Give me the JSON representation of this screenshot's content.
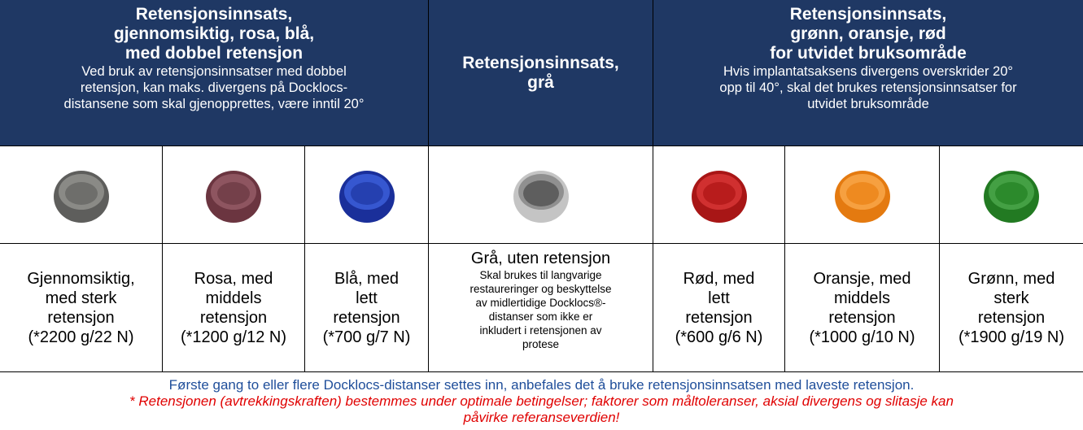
{
  "header": [
    {
      "title": [
        "Retensjonsinnsats,",
        "gjennomsiktig, rosa, blå,",
        "med dobbel retensjon"
      ],
      "subtitle": [
        "Ved bruk av retensjonsinnsatser med dobbel",
        "retensjon, kan maks. divergens på Docklocs-",
        "distansene som skal gjenopprettes, være inntil 20°"
      ]
    },
    {
      "title": [
        "Retensjonsinnsats,",
        "grå"
      ]
    },
    {
      "title": [
        "Retensjonsinnsats,",
        "grønn, oransje, rød",
        "for utvidet bruksområde"
      ],
      "subtitle": [
        "Hvis implantatsaksens divergens overskrider 20°",
        "opp til 40°, skal det brukes retensjonsinnsatser for",
        "utvidet bruksområde"
      ]
    }
  ],
  "items": [
    {
      "lines": [
        "Gjennomsiktig,",
        "med sterk",
        "retensjon",
        "(*2200 g/22 N)"
      ]
    },
    {
      "lines": [
        "Rosa, med",
        "middels",
        "retensjon",
        "(*1200 g/12 N)"
      ]
    },
    {
      "lines": [
        "Blå, med",
        "lett",
        "retensjon",
        "(*700 g/7 N)"
      ]
    },
    {
      "lines": [
        "Grå, uten retensjon"
      ],
      "note": [
        "Skal brukes til langvarige",
        "restaureringer og beskyttelse",
        "av midlertidige Docklocs®-",
        "distanser som ikke er",
        "inkludert i retensjonen av",
        "protese"
      ]
    },
    {
      "lines": [
        "Rød, med",
        "lett",
        "retensjon",
        "(*600 g/6 N)"
      ]
    },
    {
      "lines": [
        "Oransje, med",
        "middels",
        "retensjon",
        "(*1000 g/10 N)"
      ]
    },
    {
      "lines": [
        "Grønn, med",
        "sterk",
        "retensjon",
        "(*1900 g/19 N)"
      ]
    }
  ],
  "footer": {
    "note": "Første gang to eller flere Docklocs-distanser settes inn, anbefales det å bruke retensjonsinnsatsen med laveste retensjon.",
    "warning": [
      "* Retensjonen (avtrekkingskraften) bestemmes under optimale betingelser; faktorer som måltoleranser, aksial divergens og slitasje kan",
      "påvirke referanseverdien!"
    ]
  }
}
